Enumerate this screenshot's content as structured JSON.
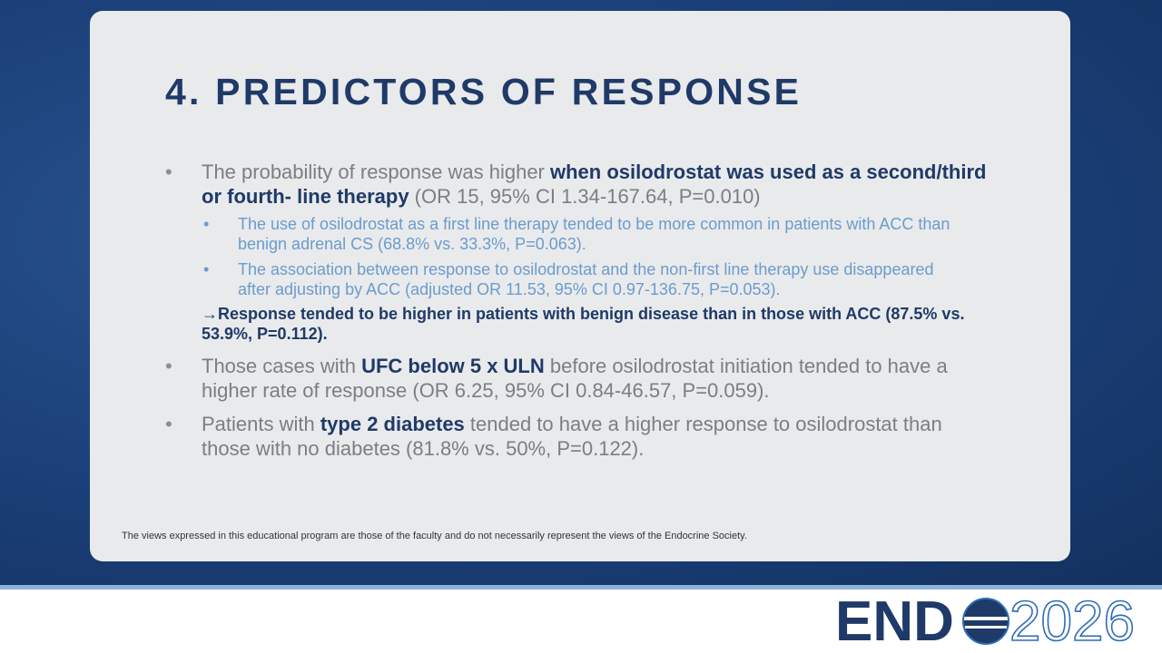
{
  "title": "4. PREDICTORS OF RESPONSE",
  "bullets": [
    {
      "parts": [
        "The probability of response was higher ",
        "when osilodrostat was used as a second/third or fourth- line therapy",
        " (OR 15, 95% CI 1.34-167.64, P=0.010)"
      ],
      "sub_bullets": [
        "The use of osilodrostat as a first line therapy tended to be more common in patients with ACC than benign adrenal CS (68.8% vs. 33.3%, P=0.063).",
        "The association between response to osilodrostat and the non-first line therapy use disappeared after adjusting by ACC (adjusted OR 11.53, 95% CI 0.97-136.75, P=0.053)."
      ],
      "note": "→Response tended to be higher in patients with benign disease than in those with ACC (87.5% vs. 53.9%, P=0.112)."
    },
    {
      "parts": [
        "Those cases with ",
        "UFC below 5 x ULN",
        " before osilodrostat initiation tended to have a higher rate of response (OR 6.25, 95% CI 0.84-46.57, P=0.059)."
      ]
    },
    {
      "parts": [
        "Patients with ",
        "type 2 diabetes",
        " tended to have a higher response to osilodrostat than those with no diabetes (81.8% vs. 50%, P=0.122)."
      ]
    }
  ],
  "footer": "The views expressed in this educational program are those of the faculty and do not necessarily represent the views of the Endocrine Society.",
  "logo": {
    "left": "END",
    "right": "2026"
  }
}
